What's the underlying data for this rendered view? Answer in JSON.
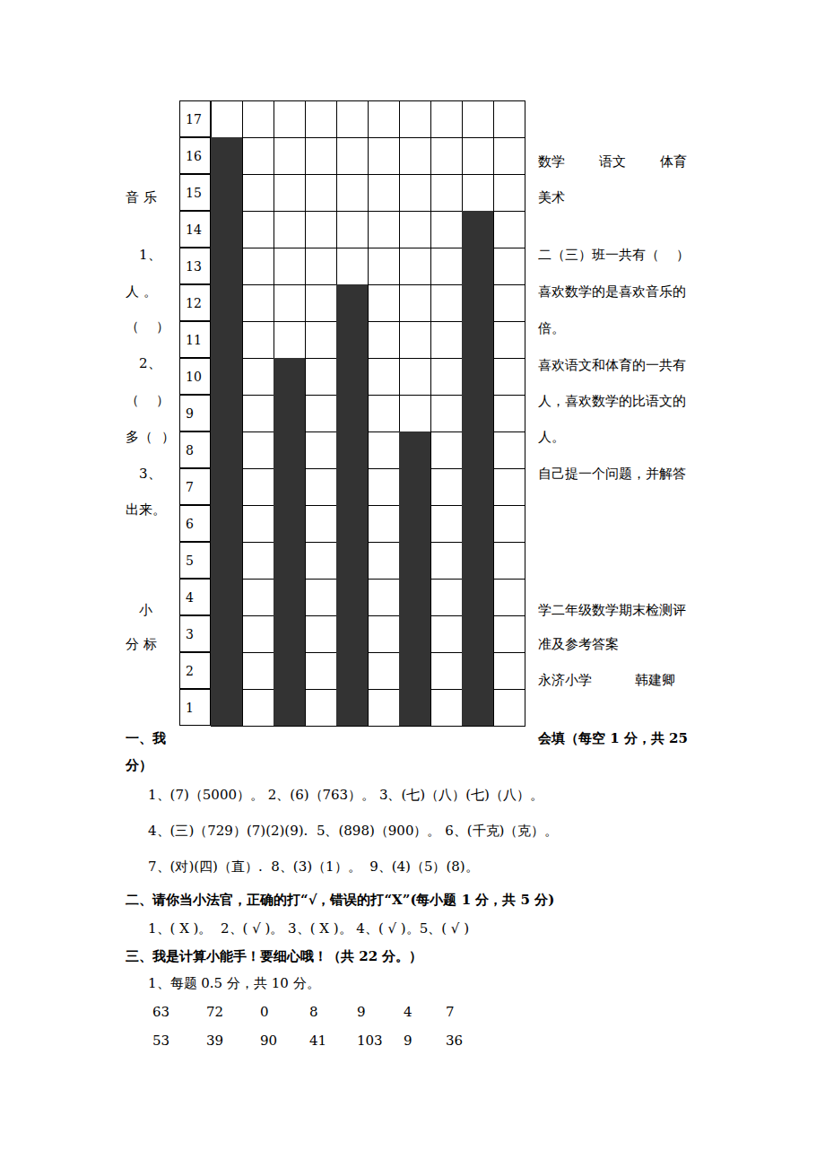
{
  "chart_data": {
    "type": "bar",
    "categories": [
      null,
      null,
      null,
      null,
      null,
      null,
      null,
      null,
      null,
      null
    ],
    "values": [
      16,
      null,
      10,
      null,
      12,
      null,
      8,
      null,
      14,
      null
    ],
    "ylim": [
      0,
      17
    ],
    "color": "#333333"
  },
  "grid_row_labels": [
    1,
    2,
    3,
    4,
    5,
    6,
    7,
    8,
    9,
    10,
    11,
    12,
    13,
    14,
    15,
    16,
    17
  ],
  "left_text": [
    "音 乐",
    "1、",
    "人 。",
    "（    ）",
    "2、",
    "（    ）",
    "多（  ）",
    "3、",
    "出来。",
    "小",
    "分 标"
  ],
  "right_text": [
    "数学        语文        体育",
    "美术",
    "二（三）班一共有（    ）",
    "喜欢数学的是喜欢音乐的",
    "倍。",
    "喜欢语文和体育的一共有",
    "人，喜欢数学的比语文的",
    "人。",
    "自己提一个问题，并解答",
    "学二年级数学期末检测评",
    "准及参考答案",
    "永济小学          韩建卿"
  ],
  "section1": {
    "left": "一、我",
    "right": "会填（每空 1 分，共 25",
    "cont": "分）",
    "lines": [
      "1、(7)（5000）。 2、(6)（763）。 3、(七)（八）(七)（八）。",
      "4、(三)（729）(7)(2)(9).  5、(898)（900）。 6、(千克)（克）。",
      "7、(对)(四)（直）.  8、(3)（1）。  9、(4)（5）(8)。"
    ]
  },
  "section2": {
    "title": "二、请你当小法官，正确的打“√，错误的打“X”(每小题 1 分，共 5 分)",
    "line": "1、( X )。  2、( √ )。 3、( X )。 4、( √ )。5、( √ )"
  },
  "section3": {
    "title": "三、我是计算小能手！要细心哦！（共 22 分。）",
    "line": "1、每题 0.5 分，共 10 分。",
    "rows": [
      [
        63,
        72,
        0,
        8,
        9,
        4,
        7
      ],
      [
        53,
        39,
        90,
        41,
        103,
        9,
        36
      ]
    ]
  }
}
